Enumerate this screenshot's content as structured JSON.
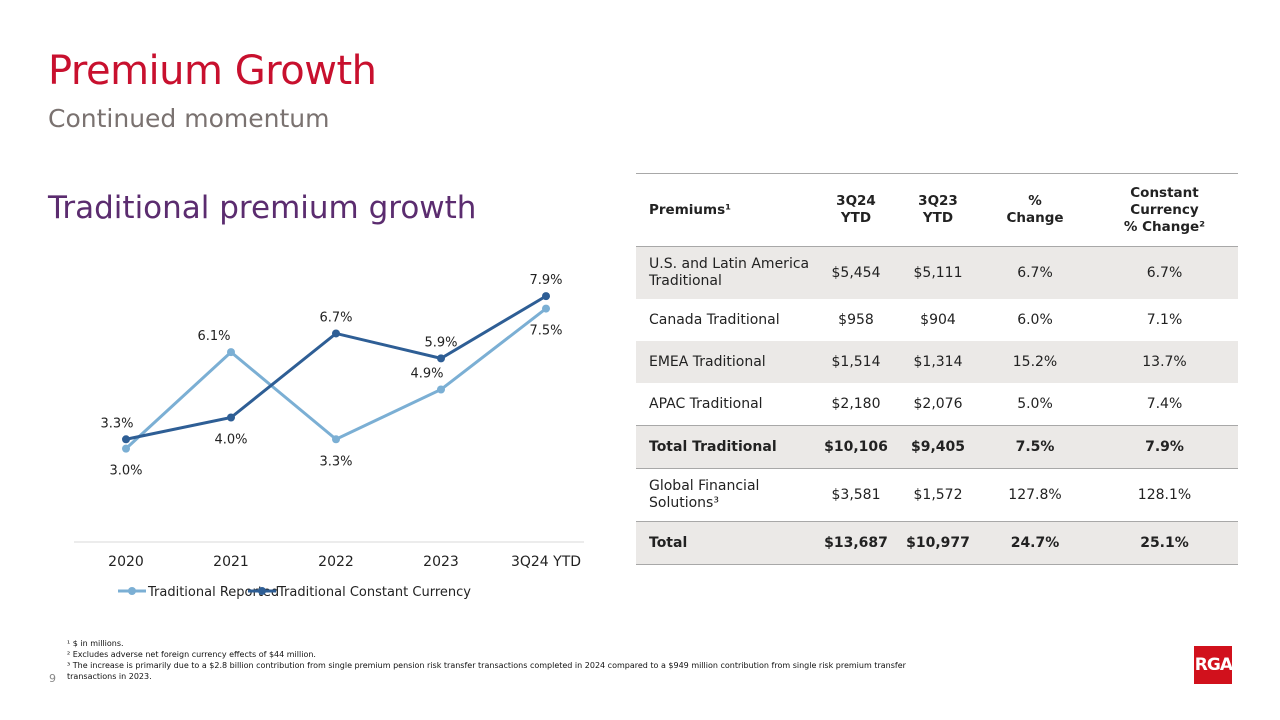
{
  "header": {
    "title": "Premium Growth",
    "subtitle": "Continued momentum",
    "section_title": "Traditional premium growth"
  },
  "colors": {
    "title": "#c8102e",
    "section": "#5b2c6f",
    "reported": "#7bafd4",
    "constant": "#2e5e95"
  },
  "chart_data": {
    "type": "line",
    "categories": [
      "2020",
      "2021",
      "2022",
      "2023",
      "3Q24 YTD"
    ],
    "ylim": [
      0,
      8
    ],
    "grid": false,
    "legend": "bottom",
    "series": [
      {
        "name": "Traditional Reported",
        "values": [
          3.0,
          6.1,
          3.3,
          4.9,
          7.5
        ],
        "labels": [
          "3.0%",
          "6.1%",
          "3.3%",
          "4.9%",
          "7.5%"
        ],
        "color": "#7bafd4"
      },
      {
        "name": "Traditional Constant Currency",
        "values": [
          3.3,
          4.0,
          6.7,
          5.9,
          7.9
        ],
        "labels": [
          "3.3%",
          "4.0%",
          "6.7%",
          "5.9%",
          "7.9%"
        ],
        "color": "#2e5e95"
      }
    ]
  },
  "table": {
    "headers": {
      "c0": "Premiums¹",
      "c1a": "3Q24",
      "c1b": "YTD",
      "c2a": "3Q23",
      "c2b": "YTD",
      "c3a": "%",
      "c3b": "Change",
      "c4a": "Constant",
      "c4b": "Currency",
      "c4c": "% Change²"
    },
    "rows": [
      {
        "name": "U.S. and Latin America Traditional",
        "v": [
          "$5,454",
          "$5,111",
          "6.7%",
          "6.7%"
        ]
      },
      {
        "name": "Canada Traditional",
        "v": [
          "$958",
          "$904",
          "6.0%",
          "7.1%"
        ]
      },
      {
        "name": "EMEA Traditional",
        "v": [
          "$1,514",
          "$1,314",
          "15.2%",
          "13.7%"
        ]
      },
      {
        "name": "APAC Traditional",
        "v": [
          "$2,180",
          "$2,076",
          "5.0%",
          "7.4%"
        ]
      },
      {
        "name": "Total Traditional",
        "v": [
          "$10,106",
          "$9,405",
          "7.5%",
          "7.9%"
        ]
      },
      {
        "name": "Global Financial Solutions³",
        "v": [
          "$3,581",
          "$1,572",
          "127.8%",
          "128.1%"
        ]
      },
      {
        "name": "Total",
        "v": [
          "$13,687",
          "$10,977",
          "24.7%",
          "25.1%"
        ]
      }
    ]
  },
  "footnotes": [
    "¹ $ in millions.",
    "² Excludes adverse net foreign currency effects of $44 million.",
    "³ The increase is primarily due to a $2.8 billion contribution from single premium pension risk transfer transactions completed in 2024 compared to a $949 million contribution from single risk premium transfer transactions in 2023."
  ],
  "page_number": "9",
  "logo_text": "RGA"
}
